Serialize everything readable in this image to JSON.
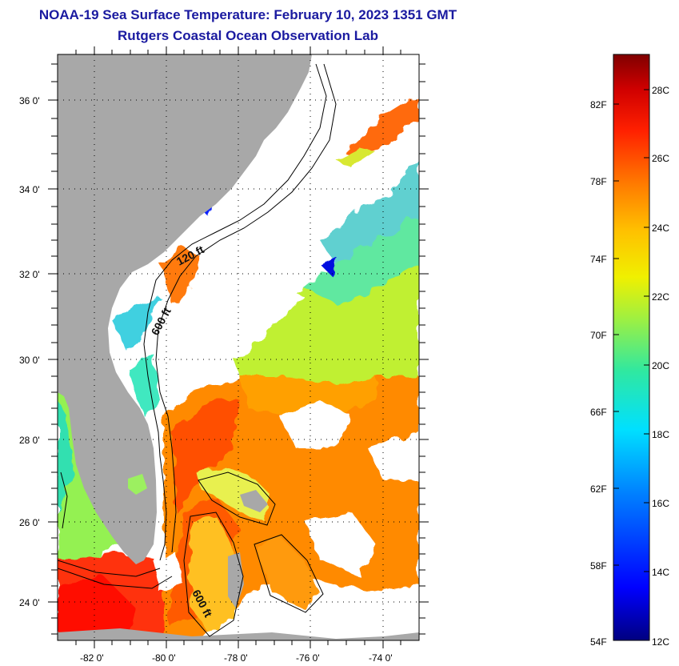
{
  "header": {
    "title": "NOAA-19 Sea Surface Temperature:  February 10, 2023 1351 GMT",
    "subtitle": "Rutgers Coastal Ocean Observation Lab"
  },
  "map": {
    "lat_labels": [
      "36 0'",
      "34 0'",
      "32 0'",
      "30 0'",
      "28 0'",
      "26 0'",
      "24 0'"
    ],
    "lon_labels": [
      "-82 0'",
      "-80 0'",
      "-78 0'",
      "-76 0'",
      "-74 0'"
    ],
    "contour_labels": {
      "shelf_120": "120 ft",
      "slope_600_north": "600 ft",
      "slope_600_south": "600 ft"
    },
    "colors": {
      "land": "#a8a8a8",
      "cloud": "#ffffff",
      "contour": "#000000"
    }
  },
  "colorbar": {
    "fahrenheit_labels": [
      "82F",
      "78F",
      "74F",
      "70F",
      "66F",
      "62F",
      "58F",
      "54F"
    ],
    "celsius_labels": [
      "28C",
      "26C",
      "24C",
      "22C",
      "20C",
      "18C",
      "16C",
      "14C",
      "12C"
    ],
    "range_c": [
      12,
      29
    ],
    "gradient": [
      "#000080",
      "#0000ff",
      "#0080ff",
      "#00e0ff",
      "#30e8a0",
      "#a0f040",
      "#f0f000",
      "#ffc000",
      "#ff7a00",
      "#ff2000",
      "#d00000",
      "#800000"
    ]
  }
}
